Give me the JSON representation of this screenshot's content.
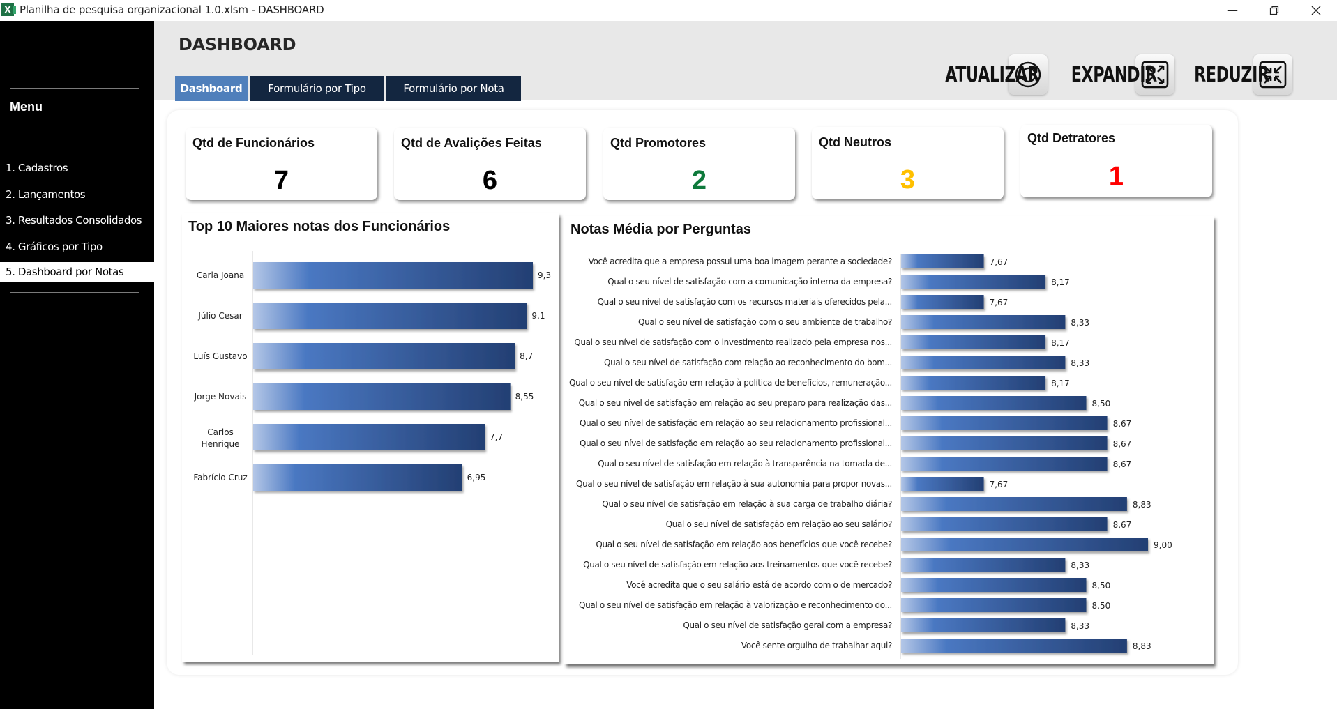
{
  "window": {
    "title": "Planilha de pesquisa organizacional 1.0.xlsm - DASHBOARD",
    "app_icon": "excel-icon",
    "controls": {
      "minimize": "—",
      "restore": "⧉",
      "close": "✕"
    }
  },
  "sidebar": {
    "menu_title": "Menu",
    "items": [
      {
        "label": "1. Cadastros",
        "active": false
      },
      {
        "label": "2. Lançamentos",
        "active": false
      },
      {
        "label": "3. Resultados Consolidados",
        "active": false
      },
      {
        "label": "4. Gráficos por Tipo",
        "active": false
      },
      {
        "label": "5. Dashboard por Notas",
        "active": true
      }
    ]
  },
  "header": {
    "title": "DASHBOARD",
    "tabs": [
      {
        "label": "Dashboard",
        "active": true
      },
      {
        "label": "Formulário por Tipo",
        "active": false
      },
      {
        "label": "Formulário por Nota",
        "active": false
      }
    ],
    "actions": [
      {
        "label": "ATUALIZAR",
        "icon": "refresh-icon"
      },
      {
        "label": "EXPANDIR",
        "icon": "expand-icon"
      },
      {
        "label": "REDUZIR",
        "icon": "collapse-icon"
      }
    ]
  },
  "kpis": [
    {
      "title": "Qtd de Funcionários",
      "value": "7",
      "color": "#000000"
    },
    {
      "title": "Qtd de Avalições Feitas",
      "value": "6",
      "color": "#000000"
    },
    {
      "title": "Qtd Promotores",
      "value": "2",
      "color": "#0e7a3c"
    },
    {
      "title": "Qtd Neutros",
      "value": "3",
      "color": "#ffc000"
    },
    {
      "title": "Qtd Detratores",
      "value": "1",
      "color": "#ff0000"
    }
  ],
  "colors": {
    "bar_light": "#b4c7e7",
    "bar_mid": "#4a78c2",
    "bar_dark": "#233f73",
    "sidebar_bg": "#000000",
    "tab_dark": "#132640",
    "tab_active": "#4f7fbb"
  },
  "chart_data": [
    {
      "type": "bar",
      "orientation": "horizontal",
      "title": "Top 10 Maiores notas dos Funcionários",
      "categories": [
        "Carla Joana",
        "Júlio Cesar",
        "Luís Gustavo",
        "Jorge Novais",
        "Carlos Henrique",
        "Fabrício Cruz"
      ],
      "values": [
        9.3,
        9.1,
        8.7,
        8.55,
        7.7,
        6.95
      ],
      "labels": [
        "9,3",
        "9,1",
        "8,7",
        "8,55",
        "7,7",
        "6,95"
      ],
      "xlim": [
        0,
        9.5
      ],
      "slots": 10,
      "grid": false,
      "legend": "none"
    },
    {
      "type": "bar",
      "orientation": "horizontal",
      "title": "Notas Média por Perguntas",
      "categories": [
        "Você acredita que a empresa possui uma boa imagem perante a sociedade?",
        "Qual o seu nível de satisfação com a comunicação interna da empresa?",
        "Qual o seu nível de satisfação com os recursos materiais oferecidos pela...",
        "Qual o seu nível de satisfação com o seu ambiente de trabalho?",
        "Qual o seu nível de satisfação com o investimento realizado pela empresa nos...",
        "Qual o seu nível de satisfação com relação ao reconhecimento do bom...",
        "Qual o seu nível de satisfação em relação à política de benefícios, remuneração...",
        "Qual o seu nível de satisfação em relação ao seu preparo para realização das...",
        "Qual o seu nível de satisfação em relação ao seu relacionamento profissional...",
        "Qual o seu nível de satisfação em relação ao seu relacionamento profissional...",
        "Qual o seu nível de satisfação em relação à transparência na tomada de...",
        "Qual o seu nível de satisfação em relação à sua autonomia para propor novas...",
        "Qual o seu nível de satisfação em relação à sua carga de trabalho diária?",
        "Qual o seu nível de satisfação em relação ao seu salário?",
        "Qual o seu nível de satisfação em relação aos benefícios que você recebe?",
        "Qual o seu nível de satisfação em relação aos treinamentos que você recebe?",
        "Você acredita que o seu salário está de acordo com o de mercado?",
        "Qual o seu nível de satisfação em relação à valorização e reconhecimento do...",
        "Qual o seu nível de satisfação geral com a empresa?",
        "Você sente orgulho de trabalhar aqui?"
      ],
      "values": [
        7.67,
        8.17,
        7.67,
        8.33,
        8.17,
        8.33,
        8.17,
        8.5,
        8.67,
        8.67,
        8.67,
        7.67,
        8.83,
        8.67,
        9.0,
        8.33,
        8.5,
        8.5,
        8.33,
        8.83
      ],
      "labels": [
        "7,67",
        "8,17",
        "7,67",
        "8,33",
        "8,17",
        "8,33",
        "8,17",
        "8,50",
        "8,67",
        "8,67",
        "8,67",
        "7,67",
        "8,83",
        "8,67",
        "9,00",
        "8,33",
        "8,50",
        "8,50",
        "8,33",
        "8,83"
      ],
      "xlim": [
        7.0,
        9.5
      ],
      "grid": false,
      "legend": "none"
    }
  ]
}
